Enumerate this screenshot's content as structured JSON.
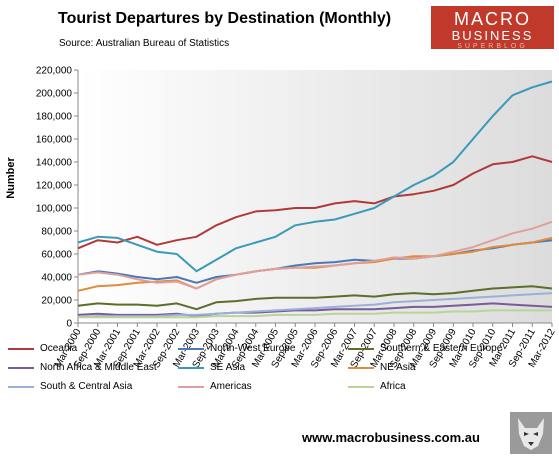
{
  "header": {
    "title": "Tourist Departures by Destination (Monthly)",
    "source": "Source: Australian Bureau of Statistics"
  },
  "logo": {
    "line1": "MACRO",
    "line2": "BUSINESS",
    "line3": "SUPERBLOG"
  },
  "footer": {
    "url": "www.macrobusiness.com.au"
  },
  "colors": {
    "Oceania": "#b03a3a",
    "North-West Europe": "#4a78b8",
    "Southern & Eastern Europe": "#5b6e2c",
    "North Africa & Middle East": "#7a5a9a",
    "SE Asia": "#3a9ab8",
    "NE Asia": "#e08a3a",
    "South & Central Asia": "#9ab0d8",
    "Americas": "#e0a09a",
    "Africa": "#b8d49a"
  },
  "chart_data": {
    "type": "line",
    "title": "Tourist Departures by Destination (Monthly)",
    "xlabel": "",
    "ylabel": "Number",
    "ylim": [
      0,
      220000
    ],
    "yticks": [
      0,
      20000,
      40000,
      60000,
      80000,
      100000,
      120000,
      140000,
      160000,
      180000,
      200000,
      220000
    ],
    "ytick_labels": [
      "0",
      "20,000",
      "40,000",
      "60,000",
      "80,000",
      "100,000",
      "120,000",
      "140,000",
      "160,000",
      "180,000",
      "200,000",
      "220,000"
    ],
    "x_labels": [
      "Mar-2000",
      "Sep-2000",
      "Mar-2001",
      "Sep-2001",
      "Mar-2002",
      "Sep-2002",
      "Mar-2003",
      "Sep-2003",
      "Mar-2004",
      "Sep-2004",
      "Mar-2005",
      "Sep-2005",
      "Mar-2006",
      "Sep-2006",
      "Mar-2007",
      "Sep-2007",
      "Mar-2008",
      "Sep-2008",
      "Mar-2009",
      "Sep-2009",
      "Mar-2010",
      "Sep-2010",
      "Mar-2011",
      "Sep-2011",
      "Mar-2012"
    ],
    "grid": false,
    "legend_position": "bottom",
    "series": [
      {
        "name": "Oceania",
        "values": [
          65000,
          72000,
          70000,
          75000,
          68000,
          72000,
          75000,
          85000,
          92000,
          97000,
          98000,
          100000,
          100000,
          104000,
          106000,
          104000,
          110000,
          112000,
          115000,
          120000,
          130000,
          138000,
          140000,
          145000,
          140000
        ]
      },
      {
        "name": "North-West Europe",
        "values": [
          42000,
          45000,
          43000,
          40000,
          38000,
          40000,
          35000,
          40000,
          42000,
          45000,
          47000,
          50000,
          52000,
          53000,
          55000,
          54000,
          56000,
          56000,
          58000,
          60000,
          63000,
          65000,
          68000,
          70000,
          72000
        ]
      },
      {
        "name": "Southern & Eastern Europe",
        "values": [
          15000,
          17000,
          16000,
          16000,
          15000,
          17000,
          12000,
          18000,
          19000,
          21000,
          22000,
          22000,
          22000,
          23000,
          24000,
          23000,
          25000,
          26000,
          25000,
          26000,
          28000,
          30000,
          31000,
          32000,
          30000
        ]
      },
      {
        "name": "North Africa & Middle East",
        "values": [
          7000,
          8000,
          7000,
          7000,
          7000,
          8000,
          6000,
          8000,
          9000,
          9000,
          10000,
          11000,
          11000,
          12000,
          12000,
          12000,
          13000,
          14000,
          14000,
          15000,
          16000,
          17000,
          16000,
          15000,
          14000
        ]
      },
      {
        "name": "SE Asia",
        "values": [
          70000,
          75000,
          74000,
          68000,
          62000,
          60000,
          45000,
          55000,
          65000,
          70000,
          75000,
          85000,
          88000,
          90000,
          95000,
          100000,
          110000,
          120000,
          128000,
          140000,
          160000,
          180000,
          198000,
          205000,
          210000
        ]
      },
      {
        "name": "NE Asia",
        "values": [
          28000,
          32000,
          33000,
          35000,
          36000,
          37000,
          30000,
          38000,
          42000,
          45000,
          47000,
          48000,
          48000,
          50000,
          52000,
          53000,
          56000,
          58000,
          58000,
          60000,
          62000,
          66000,
          68000,
          70000,
          74000
        ]
      },
      {
        "name": "South & Central Asia",
        "values": [
          5000,
          6000,
          6000,
          6000,
          6000,
          7000,
          7000,
          8000,
          9000,
          10000,
          11000,
          12000,
          13000,
          14000,
          15000,
          16000,
          18000,
          19000,
          20000,
          21000,
          22000,
          23000,
          24000,
          25000,
          26000
        ]
      },
      {
        "name": "Americas",
        "values": [
          42000,
          44000,
          42000,
          38000,
          35000,
          36000,
          30000,
          38000,
          42000,
          45000,
          47000,
          48000,
          49000,
          50000,
          52000,
          54000,
          57000,
          56000,
          58000,
          62000,
          66000,
          72000,
          78000,
          82000,
          88000
        ]
      },
      {
        "name": "Africa",
        "values": [
          5000,
          5000,
          5000,
          5000,
          5000,
          5000,
          5000,
          6000,
          6000,
          6000,
          7000,
          7000,
          7000,
          8000,
          8000,
          8000,
          9000,
          9000,
          9000,
          10000,
          10000,
          11000,
          11000,
          11000,
          11000
        ]
      }
    ]
  }
}
